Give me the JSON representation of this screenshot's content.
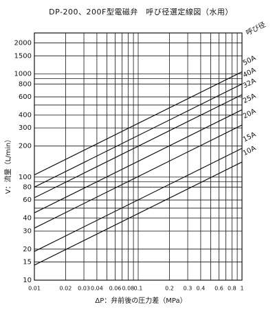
{
  "chart_data": {
    "type": "line",
    "title": "DP-200、200F型電磁弁　呼び径選定線図（水用）",
    "x_label": "ΔP：弁前後の圧力差（MPa）",
    "y_label": "V：流量（L/min）",
    "legend_title": "呼び径",
    "xlog": true,
    "ylog": true,
    "grid": true,
    "xlim": [
      0.01,
      1
    ],
    "ylim": [
      10,
      2500
    ],
    "xticks": [
      0.01,
      0.02,
      0.03,
      0.04,
      0.06,
      0.08,
      0.1,
      0.2,
      0.3,
      0.4,
      0.6,
      0.8,
      1
    ],
    "xminor_ticks": [
      0.05,
      0.07,
      0.09,
      0.5,
      0.7,
      0.9
    ],
    "yticks": [
      10,
      15,
      20,
      30,
      40,
      60,
      80,
      100,
      200,
      300,
      400,
      600,
      800,
      1000,
      1500,
      2000
    ],
    "yminor_ticks": [
      50,
      90,
      500,
      900
    ],
    "x": [
      0.01,
      1
    ],
    "series": [
      {
        "name": "50A",
        "color": "#111111",
        "values": [
          105,
          1050
        ]
      },
      {
        "name": "40A",
        "color": "#111111",
        "values": [
          80,
          800
        ]
      },
      {
        "name": "32A",
        "color": "#111111",
        "values": [
          63,
          630
        ]
      },
      {
        "name": "25A",
        "color": "#111111",
        "values": [
          45,
          450
        ]
      },
      {
        "name": "20A",
        "color": "#111111",
        "values": [
          32,
          320
        ]
      },
      {
        "name": "15A",
        "color": "#111111",
        "values": [
          19,
          190
        ]
      },
      {
        "name": "10A",
        "color": "#111111",
        "values": [
          14,
          140
        ]
      }
    ]
  }
}
